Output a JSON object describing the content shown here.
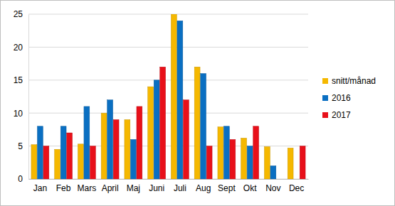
{
  "chart_data": {
    "type": "bar",
    "categories": [
      "Jan",
      "Feb",
      "Mars",
      "April",
      "Maj",
      "Juni",
      "Juli",
      "Aug",
      "Sept",
      "Okt",
      "Nov",
      "Dec"
    ],
    "series": [
      {
        "name": "snitt/månad",
        "color": "#f5b800",
        "values": [
          5.2,
          4.5,
          5.3,
          10,
          9,
          14,
          25,
          17,
          7.9,
          6.2,
          4.9,
          4.7
        ]
      },
      {
        "name": "2016",
        "color": "#0a6fc2",
        "values": [
          8,
          8,
          11,
          12,
          6,
          15,
          24,
          16,
          8,
          5,
          2,
          0
        ]
      },
      {
        "name": "2017",
        "color": "#e8101a",
        "values": [
          5,
          7,
          5,
          9,
          11,
          17,
          12,
          5,
          6,
          8,
          0,
          5
        ]
      }
    ],
    "ylim": [
      0,
      25
    ],
    "yticks": [
      0,
      5,
      10,
      15,
      20,
      25
    ],
    "grid": true,
    "legend": "right"
  }
}
